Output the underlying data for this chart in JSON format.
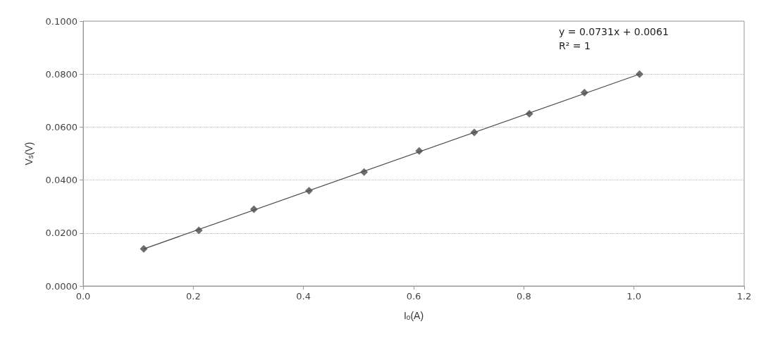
{
  "chart_data": {
    "type": "scatter",
    "xlabel": "I$_{o}$(A)",
    "ylabel": "V$_{s}$(V)",
    "annotations": [
      "y = 0.0731x + 0.0061",
      "R² = 1"
    ],
    "x": [
      0.11,
      0.21,
      0.31,
      0.41,
      0.51,
      0.61,
      0.71,
      0.81,
      0.91,
      1.01
    ],
    "series": [
      {
        "color": "#4a4a4a",
        "marker": "diamond",
        "values": [
          0.014,
          0.021,
          0.029,
          0.036,
          0.043,
          0.051,
          0.058,
          0.065,
          0.073,
          0.08
        ]
      },
      {
        "type": "line",
        "color": "#4a4a4a",
        "marker": "none",
        "x": [
          0.11,
          1.01
        ],
        "values": [
          0.014,
          0.08
        ]
      }
    ],
    "xlim": [
      0,
      1.2
    ],
    "xticks": [
      {
        "value": 0,
        "label": "0.0"
      },
      {
        "value": 0.2,
        "label": "0.2"
      },
      {
        "value": 0.4,
        "label": "0.4"
      },
      {
        "value": 0.6,
        "label": "0.6"
      },
      {
        "value": 0.8,
        "label": "0.8"
      },
      {
        "value": 1,
        "label": "1.0"
      },
      {
        "value": 1.2,
        "label": "1.2"
      }
    ],
    "ylim": [
      0,
      0.1
    ],
    "yticks": [
      {
        "value": 0,
        "label": "0.0000"
      },
      {
        "value": 0.02,
        "label": "0.0200"
      },
      {
        "value": 0.04,
        "label": "0.0400"
      },
      {
        "value": 0.06,
        "label": "0.0600"
      },
      {
        "value": 0.08,
        "label": "0.0800"
      },
      {
        "value": 0.1,
        "label": "0.1000"
      }
    ],
    "grid": "y"
  }
}
